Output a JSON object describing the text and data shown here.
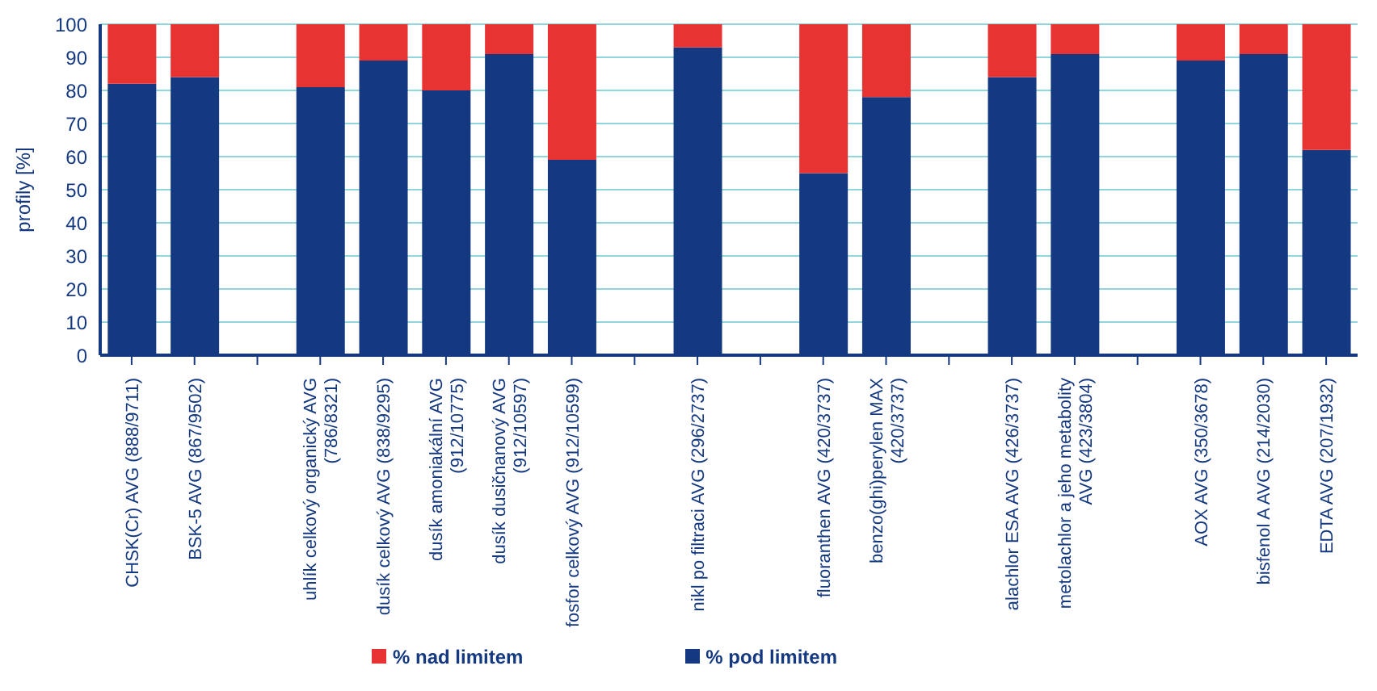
{
  "chart_data": {
    "type": "bar",
    "stacked": true,
    "ylabel": "profily [%]",
    "categories": [
      "CHSK(Cr) AVG (888/9711)",
      "BSK-5 AVG (867/9502)",
      null,
      "uhlík celkový organický AVG (786/8321)",
      "dusík celkový AVG (838/9295)",
      "dusík amoniakální AVG (912/10775)",
      "dusík dusičnanový AVG (912/10597)",
      "fosfor celkový AVG (912/10599)",
      null,
      "nikl po filtraci AVG (296/2737)",
      null,
      "fluoranthen AVG (420/3737)",
      "benzo(ghi)perylen MAX (420/3737)",
      null,
      "alachlor ESA AVG (426/3737)",
      "metolachlor a jeho metabolity AVG (423/3804)",
      null,
      "AOX AVG (350/3678)",
      "bisfenol A AVG (214/2030)",
      "EDTA AVG (207/1932)"
    ],
    "series": [
      {
        "name": "% pod limitem",
        "color": "#143981",
        "values": [
          82,
          84,
          null,
          81,
          89,
          80,
          91,
          59,
          null,
          93,
          null,
          55,
          78,
          null,
          84,
          91,
          null,
          89,
          91,
          62
        ]
      },
      {
        "name": "% nad limitem",
        "color": "#e83333",
        "values": [
          18,
          16,
          null,
          19,
          11,
          20,
          9,
          41,
          null,
          7,
          null,
          45,
          22,
          null,
          16,
          9,
          null,
          11,
          9,
          38
        ]
      }
    ],
    "ylim": [
      0,
      100
    ],
    "yticks": [
      0,
      10,
      20,
      30,
      40,
      50,
      60,
      70,
      80,
      90,
      100
    ],
    "grid": "y",
    "legend": "bottom"
  }
}
